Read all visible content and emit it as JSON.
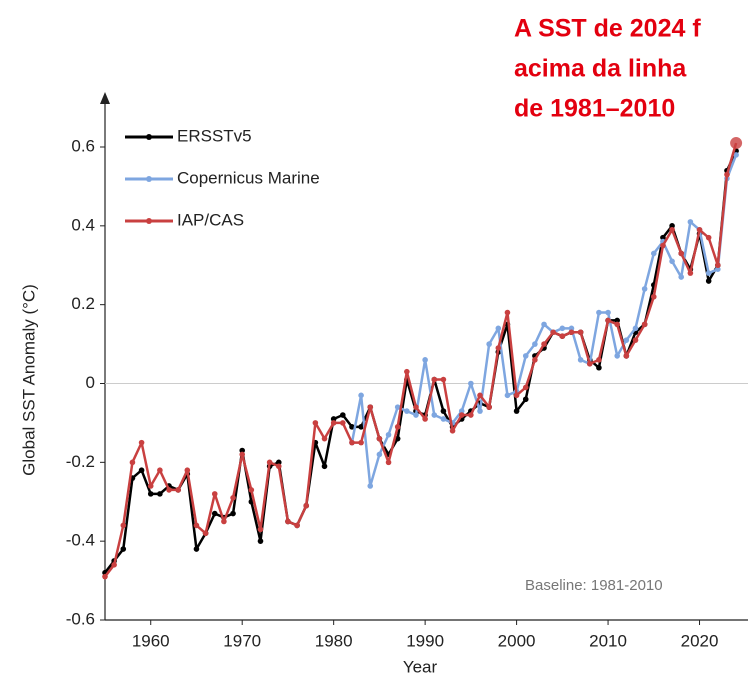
{
  "chart_data": {
    "type": "line",
    "annotations": [
      "A SST de 2024 f",
      "acima da linha",
      "de 1981–2010"
    ],
    "note": "Baseline: 1981-2010",
    "xlabel": "Year",
    "ylabel": "Global SST Anomaly (°C)",
    "x": [
      1955,
      1956,
      1957,
      1958,
      1959,
      1960,
      1961,
      1962,
      1963,
      1964,
      1965,
      1966,
      1967,
      1968,
      1969,
      1970,
      1971,
      1972,
      1973,
      1974,
      1975,
      1976,
      1977,
      1978,
      1979,
      1980,
      1981,
      1982,
      1983,
      1984,
      1985,
      1986,
      1987,
      1988,
      1989,
      1990,
      1991,
      1992,
      1993,
      1994,
      1995,
      1996,
      1997,
      1998,
      1999,
      2000,
      2001,
      2002,
      2003,
      2004,
      2005,
      2006,
      2007,
      2008,
      2009,
      2010,
      2011,
      2012,
      2013,
      2014,
      2015,
      2016,
      2017,
      2018,
      2019,
      2020,
      2021,
      2022,
      2023,
      2024
    ],
    "series": [
      {
        "name": "ERSSTv5",
        "color": "#000000",
        "values": [
          -0.48,
          -0.45,
          -0.42,
          -0.24,
          -0.22,
          -0.28,
          -0.28,
          -0.26,
          -0.27,
          -0.23,
          -0.42,
          -0.38,
          -0.33,
          -0.34,
          -0.33,
          -0.17,
          -0.3,
          -0.4,
          -0.21,
          -0.2,
          -0.35,
          -0.36,
          -0.31,
          -0.15,
          -0.21,
          -0.09,
          -0.08,
          -0.11,
          -0.11,
          -0.06,
          -0.14,
          -0.18,
          -0.14,
          0.01,
          -0.07,
          -0.08,
          0.01,
          -0.07,
          -0.11,
          -0.09,
          -0.07,
          -0.05,
          -0.06,
          0.08,
          0.15,
          -0.07,
          -0.04,
          0.07,
          0.09,
          0.13,
          0.12,
          0.13,
          0.13,
          0.06,
          0.04,
          0.16,
          0.16,
          0.07,
          0.13,
          0.15,
          0.25,
          0.37,
          0.4,
          0.33,
          0.29,
          0.38,
          0.26,
          0.3,
          0.54,
          0.59
        ]
      },
      {
        "name": "Copernicus Marine",
        "color": "#7ea6e0",
        "values": [
          null,
          null,
          null,
          null,
          null,
          null,
          null,
          null,
          null,
          null,
          null,
          null,
          null,
          null,
          null,
          null,
          null,
          null,
          null,
          null,
          null,
          null,
          null,
          null,
          null,
          null,
          null,
          -0.15,
          -0.03,
          -0.26,
          -0.18,
          -0.13,
          -0.06,
          -0.07,
          -0.08,
          0.06,
          -0.08,
          -0.09,
          -0.1,
          -0.07,
          0.0,
          -0.07,
          0.1,
          0.14,
          -0.03,
          -0.02,
          0.07,
          0.1,
          0.15,
          0.13,
          0.14,
          0.14,
          0.06,
          0.05,
          0.18,
          0.18,
          0.07,
          0.11,
          0.14,
          0.24,
          0.33,
          0.36,
          0.31,
          0.27,
          0.41,
          0.39,
          0.28,
          0.29,
          0.52,
          0.58
        ]
      },
      {
        "name": "IAP/CAS",
        "color": "#c94040",
        "values": [
          -0.49,
          -0.46,
          -0.36,
          -0.2,
          -0.15,
          -0.26,
          -0.22,
          -0.27,
          -0.27,
          -0.22,
          -0.36,
          -0.38,
          -0.28,
          -0.35,
          -0.29,
          -0.18,
          -0.27,
          -0.37,
          -0.2,
          -0.21,
          -0.35,
          -0.36,
          -0.31,
          -0.1,
          -0.14,
          -0.1,
          -0.1,
          -0.15,
          -0.15,
          -0.06,
          -0.14,
          -0.2,
          -0.11,
          0.03,
          -0.06,
          -0.09,
          0.01,
          0.01,
          -0.12,
          -0.08,
          -0.08,
          -0.03,
          -0.06,
          0.09,
          0.18,
          -0.03,
          -0.01,
          0.06,
          0.1,
          0.13,
          0.12,
          0.13,
          0.13,
          0.05,
          0.06,
          0.16,
          0.15,
          0.07,
          0.11,
          0.15,
          0.22,
          0.35,
          0.39,
          0.33,
          0.28,
          0.39,
          0.37,
          0.3,
          0.53,
          0.61
        ]
      }
    ],
    "xlim": [
      1955,
      2025.3
    ],
    "xticks": [
      1960,
      1970,
      1980,
      1990,
      2000,
      2010,
      2020
    ],
    "ylim": [
      -0.6,
      0.6
    ],
    "yticks": [
      -0.6,
      -0.4,
      -0.2,
      0,
      0.2,
      0.4,
      0.6
    ],
    "legend": "upper left"
  }
}
